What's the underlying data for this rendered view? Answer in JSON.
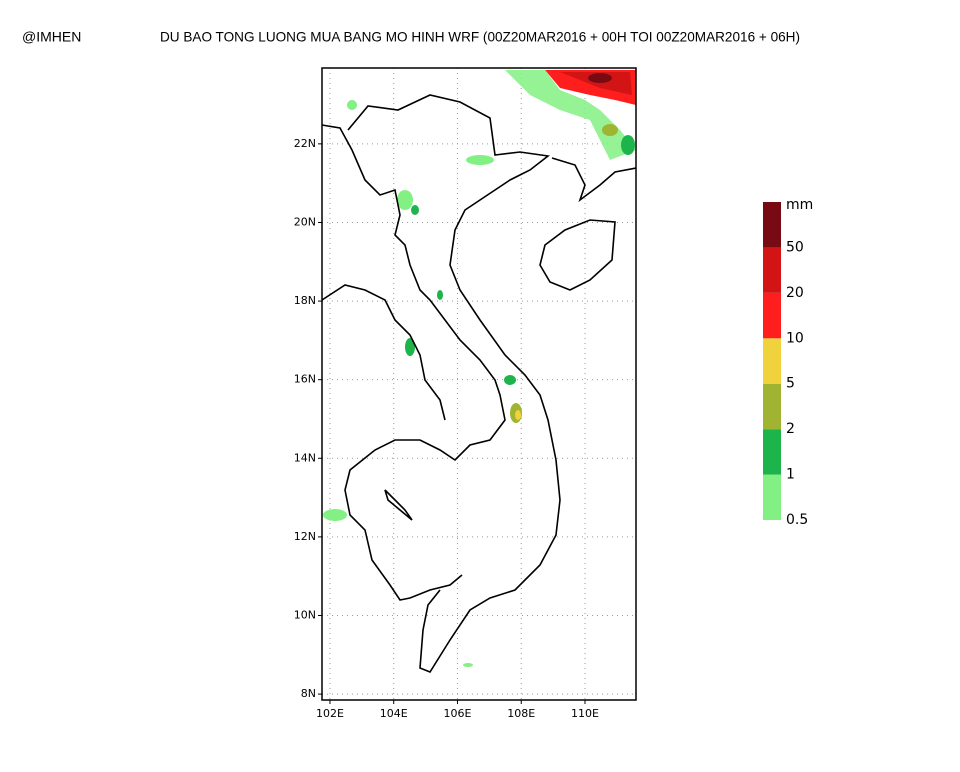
{
  "header": {
    "credit": "@IMHEN",
    "title": "DU BAO TONG LUONG MUA BANG MO HINH WRF (00Z20MAR2016 + 00H TOI 00Z20MAR2016 + 06H)"
  },
  "map": {
    "xlim": [
      101.75,
      111.6
    ],
    "ylim": [
      7.85,
      23.93
    ],
    "xticks": [
      {
        "value": 102,
        "label": "102E"
      },
      {
        "value": 104,
        "label": "104E"
      },
      {
        "value": 106,
        "label": "106E"
      },
      {
        "value": 108,
        "label": "108E"
      },
      {
        "value": 110,
        "label": "110E"
      }
    ],
    "yticks": [
      {
        "value": 8,
        "label": "8N"
      },
      {
        "value": 10,
        "label": "10N"
      },
      {
        "value": 12,
        "label": "12N"
      },
      {
        "value": 14,
        "label": "14N"
      },
      {
        "value": 16,
        "label": "16N"
      },
      {
        "value": 18,
        "label": "18N"
      },
      {
        "value": 20,
        "label": "20N"
      },
      {
        "value": 22,
        "label": "22N"
      }
    ],
    "grid": true
  },
  "legend": {
    "unit": "mm",
    "levels": [
      0.5,
      1,
      2,
      5,
      10,
      20,
      50
    ],
    "colors": [
      "#82f082",
      "#1eb44c",
      "#a0b432",
      "#f0d23c",
      "#ff1e1e",
      "#d21414",
      "#780a14"
    ]
  }
}
